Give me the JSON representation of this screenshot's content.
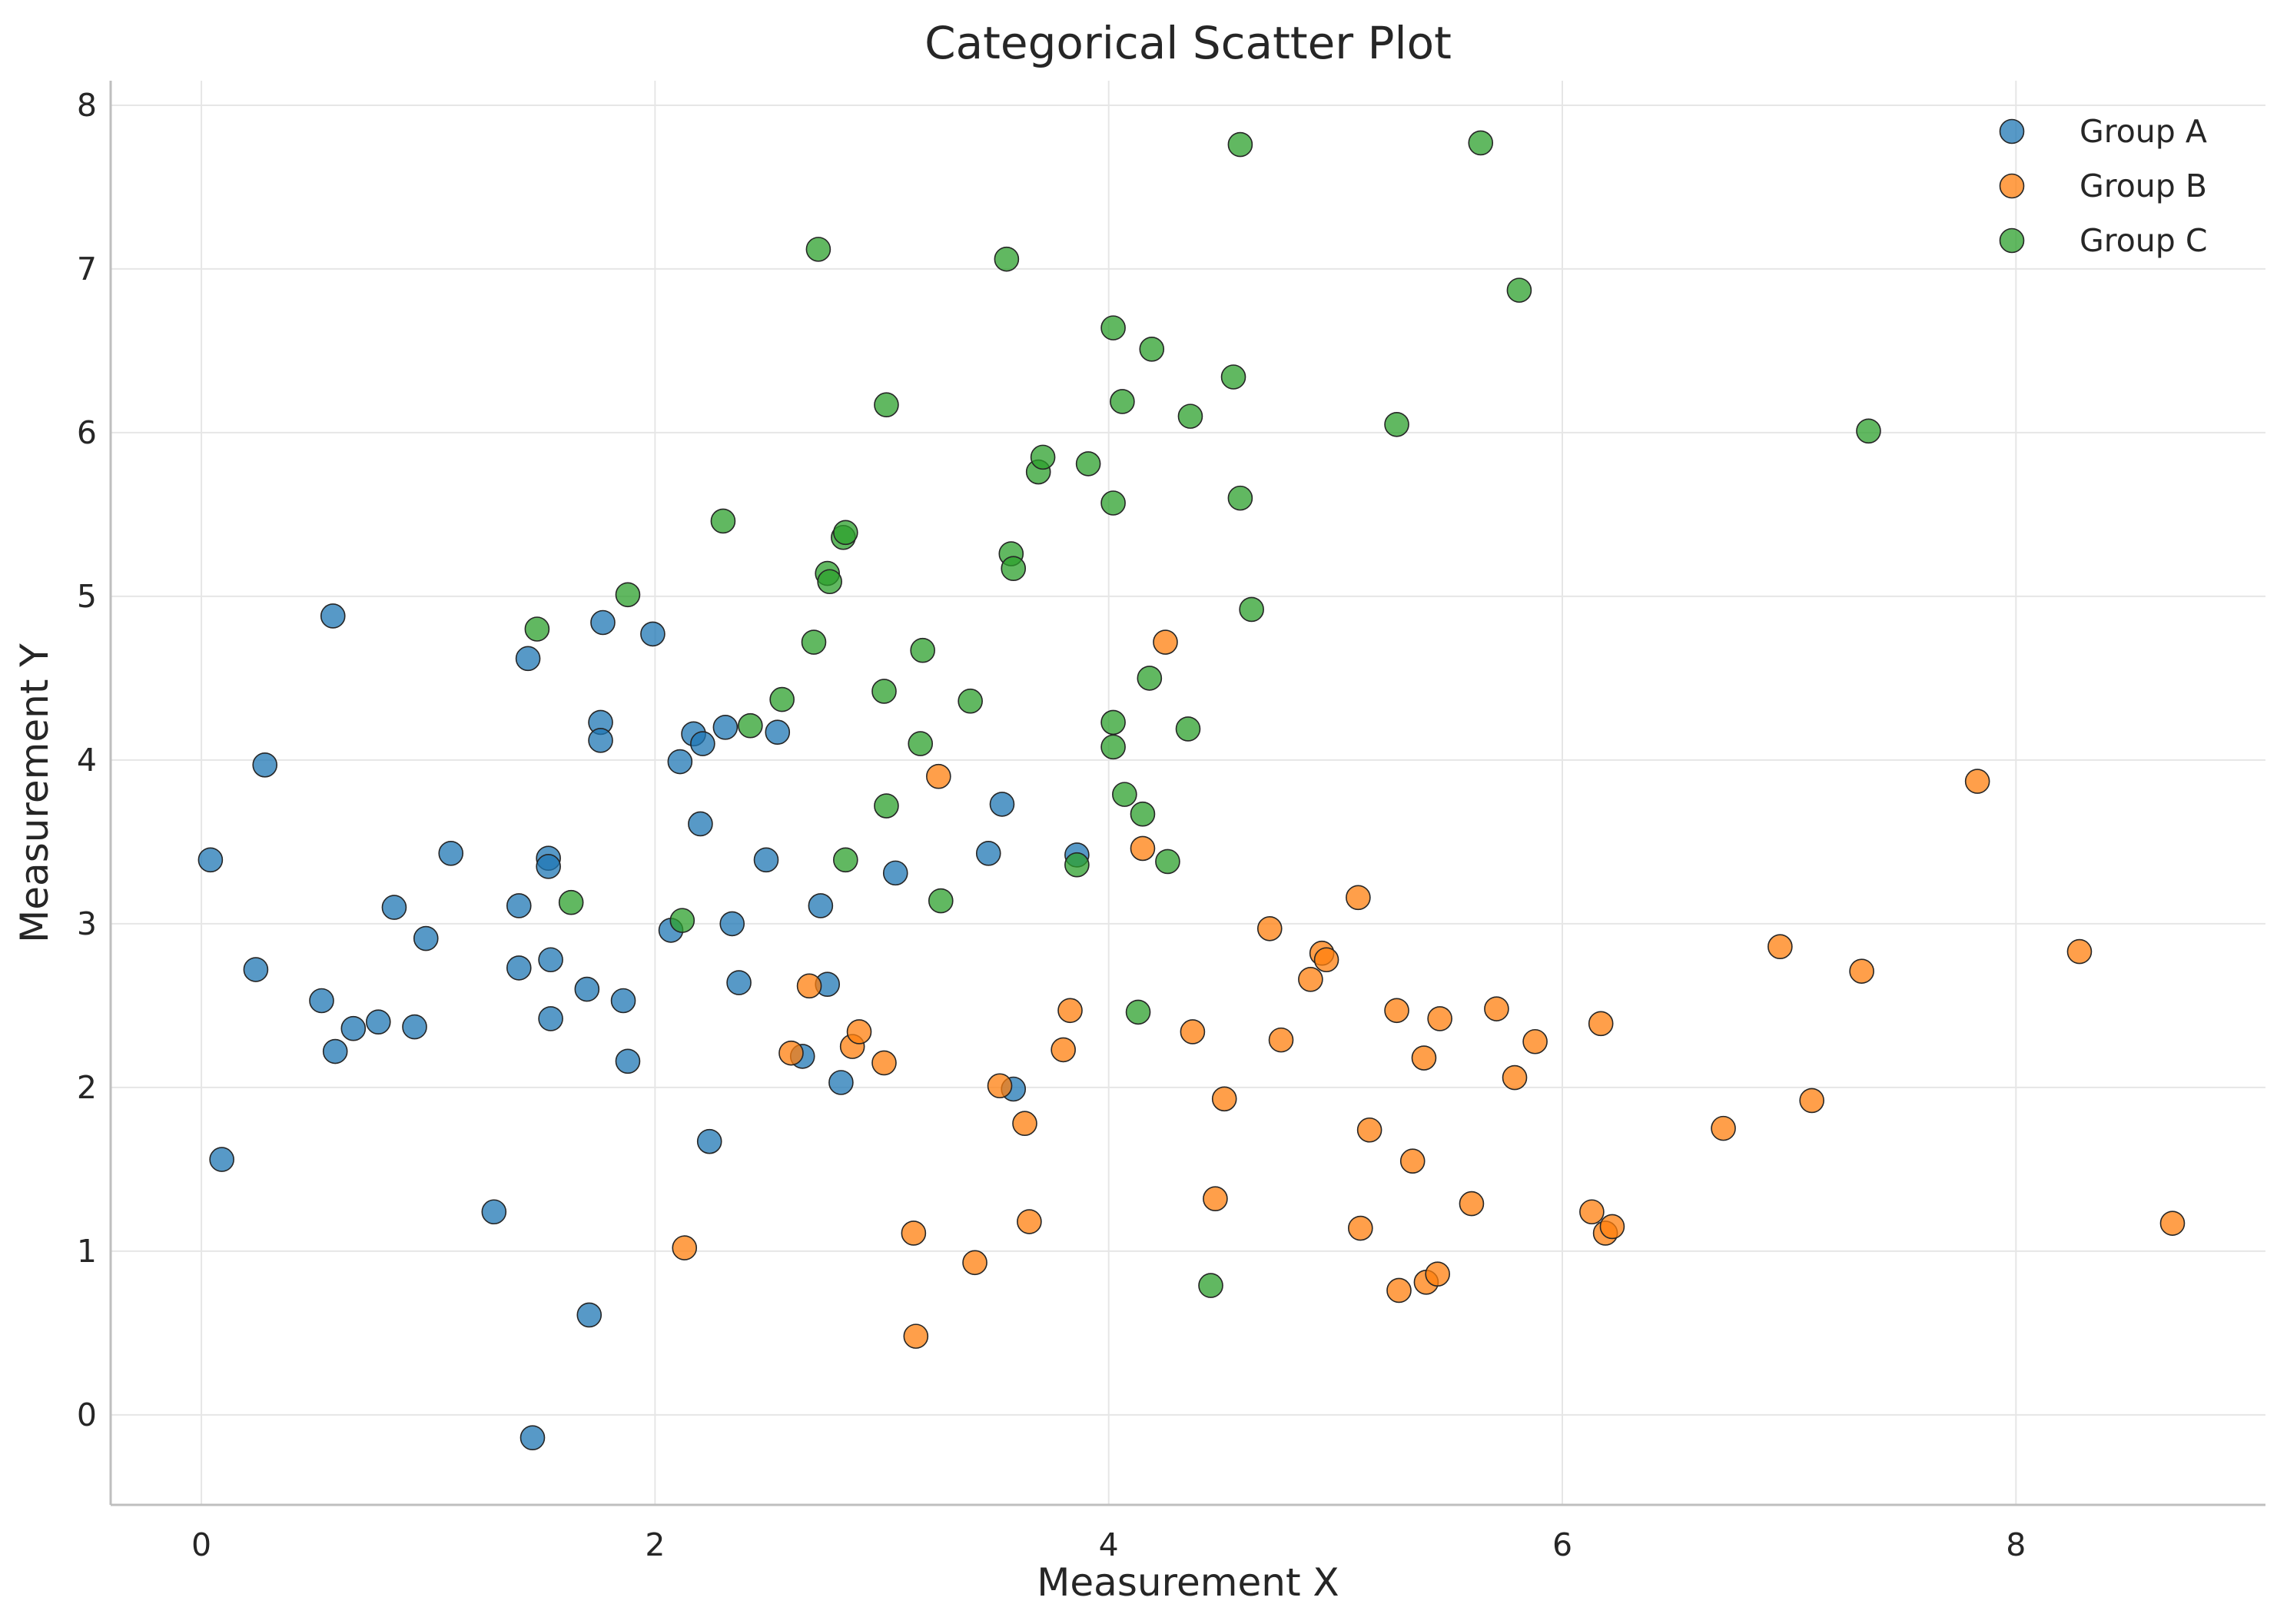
{
  "chart_data": {
    "type": "scatter",
    "title": "Categorical Scatter Plot",
    "xlabel": "Measurement X",
    "ylabel": "Measurement Y",
    "xlim": [
      -0.4,
      9.1
    ],
    "ylim": [
      -0.55,
      8.15
    ],
    "xticks": [
      0,
      2,
      4,
      6,
      8
    ],
    "yticks": [
      0,
      1,
      2,
      3,
      4,
      5,
      6,
      7,
      8
    ],
    "grid": true,
    "legend_position": "top-right",
    "series": [
      {
        "name": "Group A",
        "color": "#1f77b4",
        "points": [
          [
            0.04,
            3.39
          ],
          [
            0.09,
            1.56
          ],
          [
            0.24,
            2.72
          ],
          [
            0.28,
            3.97
          ],
          [
            0.53,
            2.53
          ],
          [
            0.58,
            4.88
          ],
          [
            0.59,
            2.22
          ],
          [
            0.67,
            2.36
          ],
          [
            0.78,
            2.4
          ],
          [
            0.85,
            3.1
          ],
          [
            0.94,
            2.37
          ],
          [
            0.99,
            2.91
          ],
          [
            1.1,
            3.43
          ],
          [
            1.29,
            1.24
          ],
          [
            1.4,
            3.11
          ],
          [
            1.4,
            2.73
          ],
          [
            1.44,
            4.62
          ],
          [
            1.46,
            -0.14
          ],
          [
            1.53,
            3.4
          ],
          [
            1.53,
            3.35
          ],
          [
            1.54,
            2.78
          ],
          [
            1.54,
            2.42
          ],
          [
            1.7,
            2.6
          ],
          [
            1.71,
            0.61
          ],
          [
            1.76,
            4.23
          ],
          [
            1.76,
            4.12
          ],
          [
            1.77,
            4.84
          ],
          [
            1.86,
            2.53
          ],
          [
            1.88,
            2.16
          ],
          [
            1.99,
            4.77
          ],
          [
            2.07,
            2.96
          ],
          [
            2.11,
            3.99
          ],
          [
            2.17,
            4.16
          ],
          [
            2.2,
            3.61
          ],
          [
            2.21,
            4.1
          ],
          [
            2.24,
            1.67
          ],
          [
            2.31,
            4.2
          ],
          [
            2.34,
            3.0
          ],
          [
            2.37,
            2.64
          ],
          [
            2.49,
            3.39
          ],
          [
            2.54,
            4.17
          ],
          [
            2.65,
            2.19
          ],
          [
            2.73,
            3.11
          ],
          [
            2.76,
            2.63
          ],
          [
            2.82,
            2.03
          ],
          [
            3.06,
            3.31
          ],
          [
            3.47,
            3.43
          ],
          [
            3.53,
            3.73
          ],
          [
            3.58,
            1.99
          ],
          [
            3.86,
            3.42
          ]
        ]
      },
      {
        "name": "Group B",
        "color": "#ff7f0e",
        "points": [
          [
            2.13,
            1.02
          ],
          [
            2.6,
            2.21
          ],
          [
            2.68,
            2.62
          ],
          [
            2.87,
            2.25
          ],
          [
            2.9,
            2.34
          ],
          [
            3.14,
            1.11
          ],
          [
            3.15,
            0.48
          ],
          [
            3.01,
            2.15
          ],
          [
            3.25,
            3.9
          ],
          [
            3.41,
            0.93
          ],
          [
            3.52,
            2.01
          ],
          [
            3.63,
            1.78
          ],
          [
            3.65,
            1.18
          ],
          [
            3.8,
            2.23
          ],
          [
            3.83,
            2.47
          ],
          [
            4.15,
            3.46
          ],
          [
            4.25,
            4.72
          ],
          [
            4.37,
            2.34
          ],
          [
            4.47,
            1.32
          ],
          [
            4.51,
            1.93
          ],
          [
            4.71,
            2.97
          ],
          [
            4.76,
            2.29
          ],
          [
            4.89,
            2.66
          ],
          [
            4.94,
            2.82
          ],
          [
            4.96,
            2.78
          ],
          [
            5.1,
            3.16
          ],
          [
            5.11,
            1.14
          ],
          [
            5.15,
            1.74
          ],
          [
            5.27,
            2.47
          ],
          [
            5.28,
            0.76
          ],
          [
            5.34,
            1.55
          ],
          [
            5.39,
            2.18
          ],
          [
            5.4,
            0.81
          ],
          [
            5.45,
            0.86
          ],
          [
            5.46,
            2.42
          ],
          [
            5.6,
            1.29
          ],
          [
            5.71,
            2.48
          ],
          [
            5.79,
            2.06
          ],
          [
            5.88,
            2.28
          ],
          [
            6.13,
            1.24
          ],
          [
            6.17,
            2.39
          ],
          [
            6.19,
            1.11
          ],
          [
            6.22,
            1.15
          ],
          [
            6.71,
            1.75
          ],
          [
            6.96,
            2.86
          ],
          [
            7.1,
            1.92
          ],
          [
            7.32,
            2.71
          ],
          [
            7.83,
            3.87
          ],
          [
            8.28,
            2.83
          ],
          [
            8.69,
            1.17
          ]
        ]
      },
      {
        "name": "Group C",
        "color": "#2ca02c",
        "points": [
          [
            1.48,
            4.8
          ],
          [
            1.63,
            3.13
          ],
          [
            1.88,
            5.01
          ],
          [
            2.12,
            3.02
          ],
          [
            2.3,
            5.46
          ],
          [
            2.42,
            4.21
          ],
          [
            2.56,
            4.37
          ],
          [
            2.7,
            4.72
          ],
          [
            2.72,
            7.12
          ],
          [
            2.76,
            5.14
          ],
          [
            2.77,
            5.09
          ],
          [
            2.83,
            5.36
          ],
          [
            2.84,
            5.39
          ],
          [
            2.84,
            3.39
          ],
          [
            3.01,
            4.42
          ],
          [
            3.02,
            6.17
          ],
          [
            3.02,
            3.72
          ],
          [
            3.17,
            4.1
          ],
          [
            3.18,
            4.67
          ],
          [
            3.26,
            3.14
          ],
          [
            3.39,
            4.36
          ],
          [
            3.55,
            7.06
          ],
          [
            3.57,
            5.26
          ],
          [
            3.58,
            5.17
          ],
          [
            3.69,
            5.76
          ],
          [
            3.71,
            5.85
          ],
          [
            3.86,
            3.36
          ],
          [
            3.91,
            5.81
          ],
          [
            4.02,
            4.23
          ],
          [
            4.02,
            4.08
          ],
          [
            4.02,
            5.57
          ],
          [
            4.02,
            6.64
          ],
          [
            4.07,
            3.79
          ],
          [
            4.06,
            6.19
          ],
          [
            4.13,
            2.46
          ],
          [
            4.15,
            3.67
          ],
          [
            4.18,
            4.5
          ],
          [
            4.19,
            6.51
          ],
          [
            4.26,
            3.38
          ],
          [
            4.35,
            4.19
          ],
          [
            4.36,
            6.1
          ],
          [
            4.45,
            0.79
          ],
          [
            4.55,
            6.34
          ],
          [
            4.58,
            5.6
          ],
          [
            4.58,
            7.76
          ],
          [
            4.63,
            4.92
          ],
          [
            5.27,
            6.05
          ],
          [
            5.64,
            7.77
          ],
          [
            5.81,
            6.87
          ],
          [
            7.35,
            6.01
          ]
        ]
      }
    ]
  }
}
